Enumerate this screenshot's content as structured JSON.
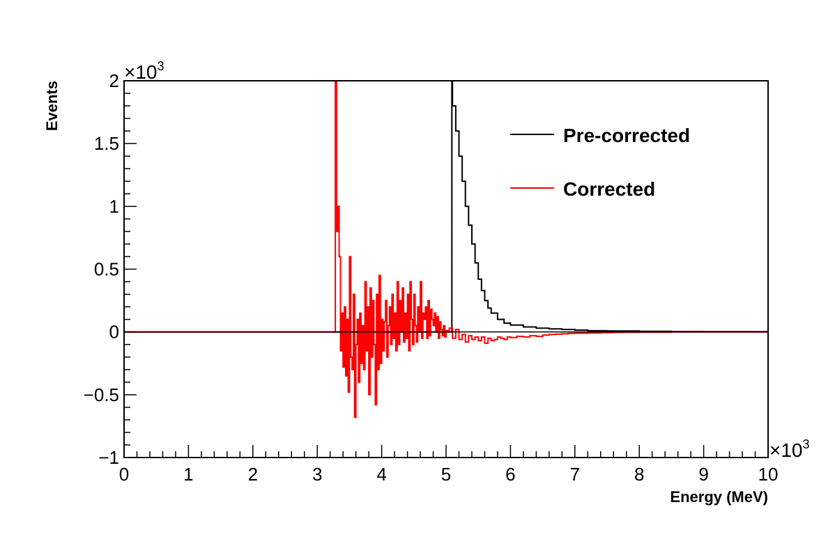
{
  "chart_data": {
    "type": "line",
    "title": "",
    "xlabel": "Energy (MeV)",
    "ylabel": "Events",
    "x_multiplier": "×10",
    "x_multiplier_exp": "3",
    "y_multiplier": "×10",
    "y_multiplier_exp": "3",
    "xlim": [
      0,
      10000
    ],
    "ylim": [
      -1000,
      2000
    ],
    "x_ticks": [
      0,
      1000,
      2000,
      3000,
      4000,
      5000,
      6000,
      7000,
      8000,
      9000,
      10000
    ],
    "x_tick_labels": [
      "0",
      "1",
      "2",
      "3",
      "4",
      "5",
      "6",
      "7",
      "8",
      "9",
      "10"
    ],
    "y_ticks": [
      -1000,
      -500,
      0,
      500,
      1000,
      1500,
      2000
    ],
    "y_tick_labels": [
      "−1",
      "−0.5",
      "0",
      "0.5",
      "1",
      "1.5",
      "2"
    ],
    "grid": false,
    "legend_position": "top-right",
    "series": [
      {
        "name": "Pre-corrected",
        "color": "#000000",
        "x": [
          0,
          3300,
          5090,
          5100,
          5150,
          5200,
          5250,
          5300,
          5350,
          5400,
          5450,
          5500,
          5550,
          5600,
          5650,
          5700,
          5800,
          5900,
          6000,
          6200,
          6400,
          6600,
          6800,
          7000,
          7200,
          7500,
          8000,
          8500,
          9000,
          10000
        ],
        "values": [
          0,
          0,
          2000,
          1800,
          1600,
          1400,
          1200,
          1000,
          850,
          700,
          550,
          420,
          330,
          250,
          190,
          150,
          100,
          70,
          55,
          40,
          30,
          25,
          20,
          15,
          10,
          8,
          5,
          3,
          2,
          0
        ]
      },
      {
        "name": "Corrected",
        "color": "#ff0000",
        "x": [
          0,
          3260,
          3280,
          3300,
          3320,
          3340,
          3360,
          3380,
          3400,
          3420,
          3440,
          3460,
          3480,
          3500,
          3520,
          3540,
          3560,
          3580,
          3600,
          3620,
          3640,
          3660,
          3680,
          3700,
          3720,
          3740,
          3760,
          3780,
          3800,
          3820,
          3840,
          3860,
          3880,
          3900,
          3920,
          3940,
          3960,
          3980,
          4000,
          4020,
          4040,
          4060,
          4080,
          4100,
          4120,
          4140,
          4160,
          4180,
          4200,
          4220,
          4240,
          4260,
          4280,
          4300,
          4320,
          4340,
          4360,
          4380,
          4400,
          4420,
          4440,
          4460,
          4480,
          4500,
          4520,
          4540,
          4560,
          4580,
          4600,
          4620,
          4640,
          4660,
          4680,
          4700,
          4720,
          4740,
          4760,
          4780,
          4800,
          4820,
          4840,
          4860,
          4880,
          4900,
          4920,
          4940,
          4960,
          4980,
          5000,
          5050,
          5100,
          5150,
          5200,
          5250,
          5300,
          5350,
          5400,
          5450,
          5500,
          5550,
          5600,
          5650,
          5700,
          5750,
          5800,
          5850,
          5900,
          5950,
          6000,
          6100,
          6200,
          6300,
          6400,
          6500,
          6600,
          6700,
          6800,
          6900,
          7000,
          7200,
          7400,
          7600,
          7800,
          8000,
          8500,
          9000,
          10000
        ],
        "values": [
          0,
          0,
          2000,
          800,
          1000,
          600,
          -150,
          150,
          -280,
          200,
          -350,
          100,
          -480,
          600,
          -200,
          -300,
          300,
          -680,
          -100,
          100,
          -400,
          150,
          -250,
          50,
          -300,
          400,
          -150,
          200,
          -500,
          350,
          -200,
          250,
          -100,
          -580,
          300,
          -300,
          450,
          -250,
          100,
          -150,
          80,
          250,
          -200,
          50,
          200,
          -100,
          300,
          -50,
          150,
          -150,
          400,
          -100,
          250,
          0,
          350,
          -80,
          150,
          -50,
          300,
          -150,
          400,
          100,
          -100,
          300,
          50,
          -80,
          200,
          0,
          400,
          -50,
          150,
          100,
          200,
          -50,
          250,
          -30,
          180,
          100,
          50,
          150,
          0,
          120,
          -50,
          80,
          20,
          -30,
          50,
          -40,
          10,
          30,
          -50,
          20,
          -60,
          -20,
          -80,
          -30,
          -60,
          -40,
          -70,
          -40,
          -90,
          -50,
          -70,
          -60,
          -40,
          -50,
          -60,
          -40,
          -45,
          -35,
          -40,
          -30,
          -35,
          -25,
          -20,
          -18,
          -15,
          -12,
          -10,
          -8,
          -6,
          -4,
          -3,
          -2,
          -1,
          0,
          0
        ]
      }
    ]
  }
}
